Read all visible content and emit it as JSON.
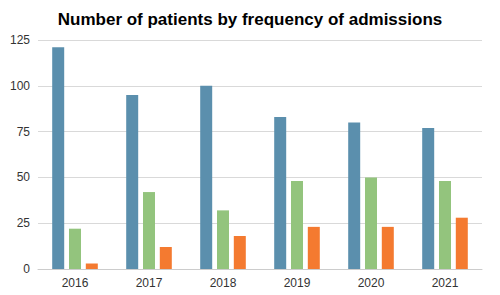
{
  "chart_data": {
    "type": "bar",
    "title": "Number of patients by frequency of admissions",
    "categories": [
      "2016",
      "2017",
      "2018",
      "2019",
      "2020",
      "2021"
    ],
    "series": [
      {
        "color": "#5b8fad",
        "values": [
          121,
          95,
          100,
          83,
          80,
          77
        ]
      },
      {
        "color": "#93c47d",
        "values": [
          22,
          42,
          32,
          48,
          50,
          48
        ]
      },
      {
        "color": "#f47a30",
        "values": [
          3,
          12,
          18,
          23,
          23,
          28
        ]
      }
    ],
    "ylim": [
      0,
      125
    ],
    "yticks": [
      0,
      25,
      50,
      75,
      100,
      125
    ],
    "grid": true
  }
}
